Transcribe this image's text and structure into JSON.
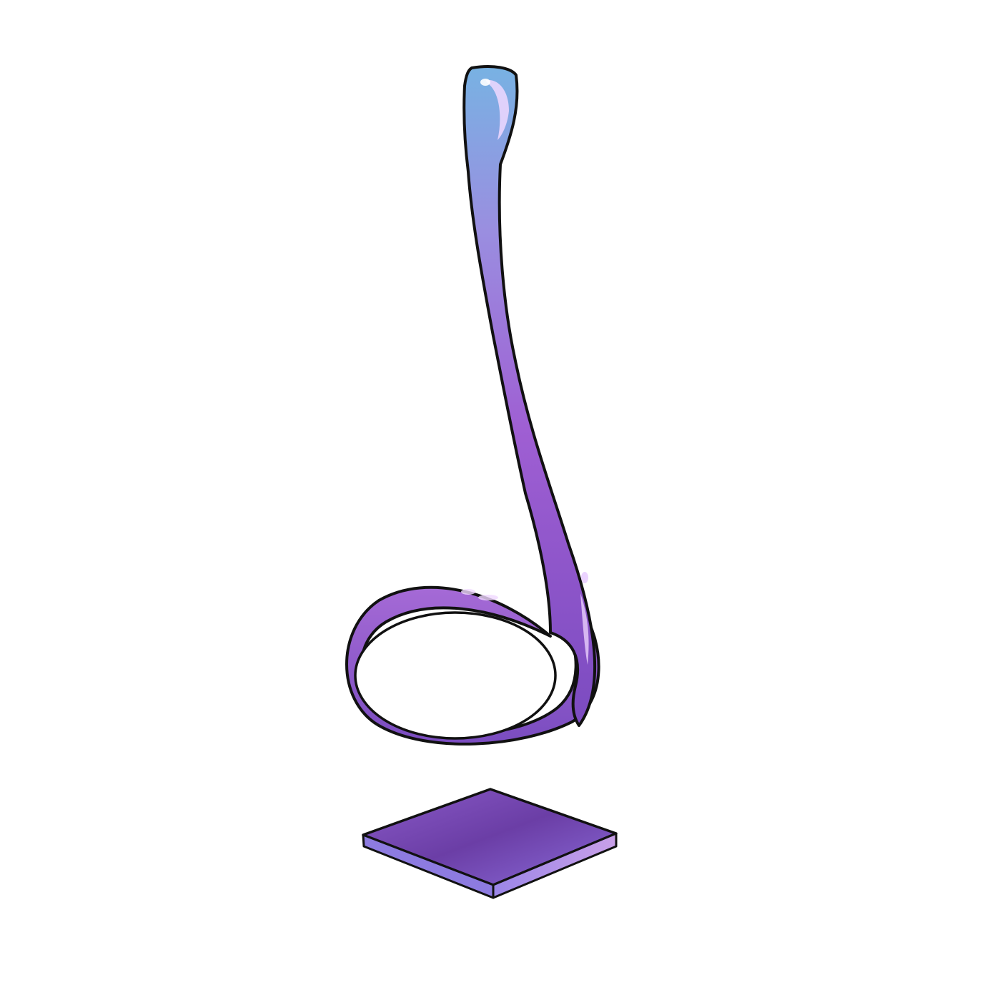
{
  "scene": {
    "background": "#ffffff",
    "subject": "note-sculpture",
    "colors": {
      "outline": "#111111",
      "stem_top": "#78b2e3",
      "stem_mid": "#9a8ee0",
      "body": "#8b52c8",
      "loop": "#7f4fbf",
      "loop_light": "#a56ad6",
      "highlight": "#f0d8ff",
      "base_top": "#6d3ea8",
      "base_edge": "#9b86e8"
    }
  }
}
